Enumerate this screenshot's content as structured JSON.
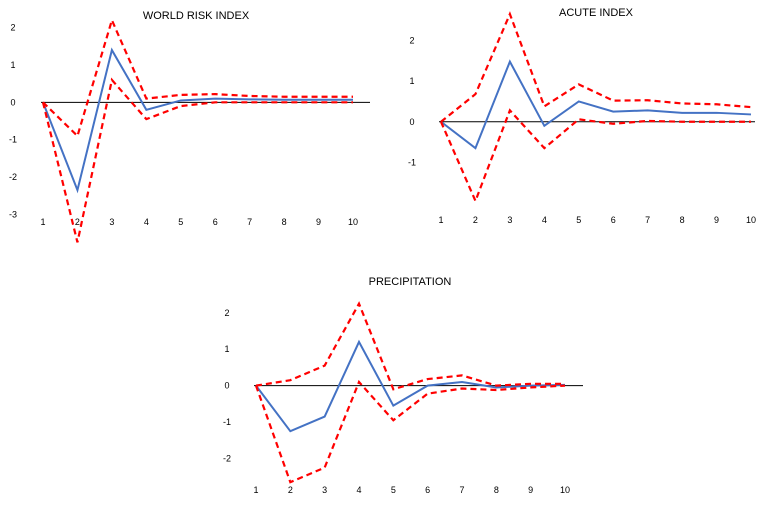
{
  "colors": {
    "irf": "#4472C4",
    "bands": "#FF0000",
    "axis": "#000000"
  },
  "chart_data": [
    {
      "type": "line",
      "title": "WORLD RISK INDEX",
      "x": [
        1,
        2,
        3,
        4,
        5,
        6,
        7,
        8,
        9,
        10
      ],
      "x_tick_labels": [
        "1",
        "2",
        "3",
        "4",
        "5",
        "6",
        "7",
        "8",
        "9",
        "10"
      ],
      "ylim": [
        -3.5,
        2.5
      ],
      "y_ticks": [
        2,
        1,
        0,
        -1,
        -2,
        -3
      ],
      "y_tick_labels": [
        "2",
        "1",
        "0",
        "-1",
        "-2",
        "-3"
      ],
      "series": [
        {
          "role": "irf",
          "style": "solid",
          "values": [
            0,
            -2.35,
            1.4,
            -0.2,
            0.05,
            0.1,
            0.08,
            0.07,
            0.07,
            0.07
          ]
        },
        {
          "role": "upper",
          "style": "dashed",
          "values": [
            0,
            -0.9,
            2.2,
            0.1,
            0.2,
            0.22,
            0.17,
            0.15,
            0.15,
            0.15
          ]
        },
        {
          "role": "lower",
          "style": "dashed",
          "values": [
            0,
            -3.75,
            0.6,
            -0.45,
            -0.1,
            0.0,
            0.0,
            0.0,
            0.0,
            0.0
          ]
        }
      ]
    },
    {
      "type": "line",
      "title": "ACUTE INDEX",
      "x": [
        1,
        2,
        3,
        4,
        5,
        6,
        7,
        8,
        9,
        10
      ],
      "x_tick_labels": [
        "1",
        "2",
        "3",
        "4",
        "5",
        "6",
        "7",
        "8",
        "9",
        "10"
      ],
      "ylim": [
        -2.0,
        2.8
      ],
      "y_ticks": [
        2,
        1,
        0,
        -1
      ],
      "y_tick_labels": [
        "2",
        "1",
        "0",
        "-1"
      ],
      "series": [
        {
          "role": "irf",
          "style": "solid",
          "values": [
            0,
            -0.65,
            1.48,
            -0.1,
            0.5,
            0.25,
            0.28,
            0.22,
            0.22,
            0.18
          ]
        },
        {
          "role": "upper",
          "style": "dashed",
          "values": [
            0,
            0.68,
            2.65,
            0.38,
            0.92,
            0.52,
            0.53,
            0.45,
            0.43,
            0.36
          ]
        },
        {
          "role": "lower",
          "style": "dashed",
          "values": [
            0,
            -1.95,
            0.28,
            -0.65,
            0.06,
            -0.05,
            0.02,
            0.0,
            0.0,
            0.0
          ]
        }
      ]
    },
    {
      "type": "line",
      "title": "PRECIPITATION",
      "x": [
        1,
        2,
        3,
        4,
        5,
        6,
        7,
        8,
        9,
        10
      ],
      "x_tick_labels": [
        "1",
        "2",
        "3",
        "4",
        "5",
        "6",
        "7",
        "8",
        "9",
        "10"
      ],
      "ylim": [
        -2.7,
        2.35
      ],
      "y_ticks": [
        2,
        1,
        0,
        -1,
        -2
      ],
      "y_tick_labels": [
        "2",
        "1",
        "0",
        "-1",
        "-2"
      ],
      "series": [
        {
          "role": "irf",
          "style": "solid",
          "values": [
            0,
            -1.25,
            -0.85,
            1.2,
            -0.55,
            0.0,
            0.1,
            -0.05,
            0.0,
            0.02
          ]
        },
        {
          "role": "upper",
          "style": "dashed",
          "values": [
            0,
            0.15,
            0.55,
            2.25,
            -0.1,
            0.18,
            0.28,
            0.0,
            0.05,
            0.05
          ]
        },
        {
          "role": "lower",
          "style": "dashed",
          "values": [
            0,
            -2.65,
            -2.25,
            0.1,
            -0.95,
            -0.22,
            -0.08,
            -0.12,
            -0.05,
            0.0
          ]
        }
      ]
    }
  ]
}
